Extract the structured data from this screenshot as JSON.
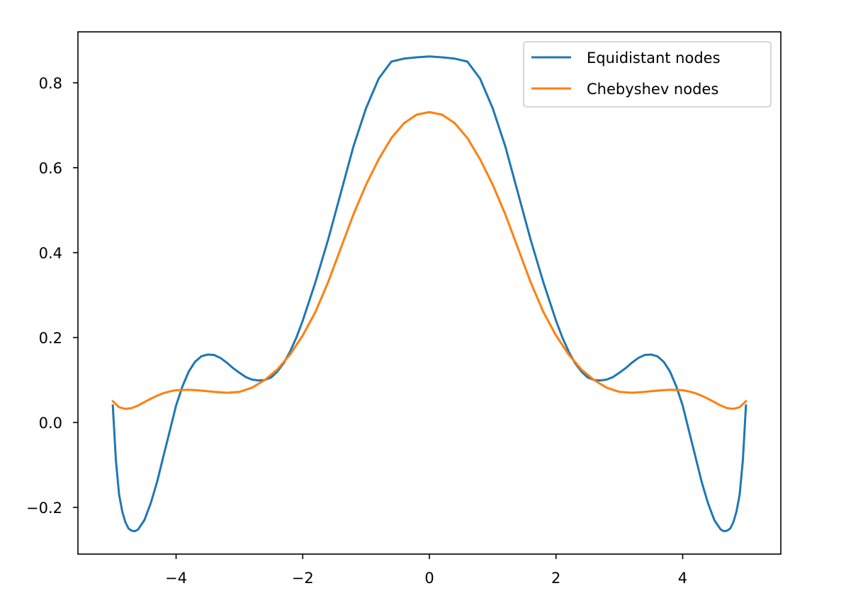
{
  "chart_data": {
    "type": "line",
    "title": "",
    "xlabel": "",
    "ylabel": "",
    "xlim": [
      -5.55,
      5.55
    ],
    "ylim": [
      -0.31,
      0.92
    ],
    "grid": false,
    "legend_position": "top-right",
    "x_ticks": [
      {
        "value": -4,
        "label": "−4"
      },
      {
        "value": -2,
        "label": "−2"
      },
      {
        "value": 0,
        "label": "0"
      },
      {
        "value": 2,
        "label": "2"
      },
      {
        "value": 4,
        "label": "4"
      }
    ],
    "y_ticks": [
      {
        "value": -0.2,
        "label": "−0.2"
      },
      {
        "value": 0.0,
        "label": "0.0"
      },
      {
        "value": 0.2,
        "label": "0.2"
      },
      {
        "value": 0.4,
        "label": "0.4"
      },
      {
        "value": 0.6,
        "label": "0.6"
      },
      {
        "value": 0.8,
        "label": "0.8"
      }
    ],
    "series": [
      {
        "name": "Equidistant nodes",
        "color": "#1f77b4",
        "x": [
          -5.0,
          -4.95,
          -4.9,
          -4.85,
          -4.8,
          -4.75,
          -4.7,
          -4.65,
          -4.6,
          -4.5,
          -4.4,
          -4.3,
          -4.2,
          -4.1,
          -4.0,
          -3.9,
          -3.8,
          -3.7,
          -3.6,
          -3.5,
          -3.4,
          -3.3,
          -3.2,
          -3.1,
          -3.0,
          -2.9,
          -2.8,
          -2.7,
          -2.6,
          -2.5,
          -2.4,
          -2.3,
          -2.2,
          -2.1,
          -2.0,
          -1.8,
          -1.6,
          -1.4,
          -1.2,
          -1.0,
          -0.8,
          -0.6,
          -0.4,
          -0.2,
          0.0,
          0.2,
          0.4,
          0.6,
          0.8,
          1.0,
          1.2,
          1.4,
          1.6,
          1.8,
          2.0,
          2.1,
          2.2,
          2.3,
          2.4,
          2.5,
          2.6,
          2.7,
          2.8,
          2.9,
          3.0,
          3.1,
          3.2,
          3.3,
          3.4,
          3.5,
          3.6,
          3.7,
          3.8,
          3.9,
          4.0,
          4.1,
          4.2,
          4.3,
          4.4,
          4.5,
          4.6,
          4.65,
          4.7,
          4.75,
          4.8,
          4.85,
          4.9,
          4.95,
          5.0
        ],
        "y": [
          0.04,
          -0.09,
          -0.17,
          -0.21,
          -0.235,
          -0.25,
          -0.255,
          -0.256,
          -0.252,
          -0.23,
          -0.19,
          -0.14,
          -0.08,
          -0.02,
          0.04,
          0.085,
          0.12,
          0.143,
          0.156,
          0.16,
          0.159,
          0.152,
          0.141,
          0.128,
          0.117,
          0.107,
          0.101,
          0.099,
          0.1,
          0.106,
          0.12,
          0.14,
          0.167,
          0.2,
          0.24,
          0.33,
          0.43,
          0.54,
          0.65,
          0.74,
          0.81,
          0.85,
          0.857,
          0.86,
          0.862,
          0.86,
          0.857,
          0.85,
          0.81,
          0.74,
          0.65,
          0.54,
          0.43,
          0.33,
          0.24,
          0.2,
          0.167,
          0.14,
          0.12,
          0.106,
          0.1,
          0.099,
          0.101,
          0.107,
          0.117,
          0.128,
          0.141,
          0.152,
          0.159,
          0.16,
          0.156,
          0.143,
          0.12,
          0.085,
          0.04,
          -0.02,
          -0.08,
          -0.14,
          -0.19,
          -0.23,
          -0.252,
          -0.256,
          -0.255,
          -0.25,
          -0.235,
          -0.21,
          -0.17,
          -0.09,
          0.04
        ]
      },
      {
        "name": "Chebyshev nodes",
        "color": "#ff7f0e",
        "x": [
          -5.0,
          -4.9,
          -4.8,
          -4.7,
          -4.6,
          -4.5,
          -4.4,
          -4.3,
          -4.2,
          -4.1,
          -4.0,
          -3.8,
          -3.6,
          -3.4,
          -3.2,
          -3.0,
          -2.8,
          -2.6,
          -2.4,
          -2.2,
          -2.0,
          -1.8,
          -1.6,
          -1.4,
          -1.2,
          -1.0,
          -0.8,
          -0.6,
          -0.4,
          -0.2,
          0.0,
          0.2,
          0.4,
          0.6,
          0.8,
          1.0,
          1.2,
          1.4,
          1.6,
          1.8,
          2.0,
          2.2,
          2.4,
          2.6,
          2.8,
          3.0,
          3.2,
          3.4,
          3.6,
          3.8,
          4.0,
          4.1,
          4.2,
          4.3,
          4.4,
          4.5,
          4.6,
          4.7,
          4.8,
          4.9,
          5.0
        ],
        "y": [
          0.05,
          0.036,
          0.032,
          0.034,
          0.04,
          0.048,
          0.056,
          0.063,
          0.069,
          0.073,
          0.076,
          0.077,
          0.075,
          0.072,
          0.07,
          0.072,
          0.082,
          0.1,
          0.125,
          0.16,
          0.205,
          0.26,
          0.33,
          0.41,
          0.49,
          0.56,
          0.62,
          0.67,
          0.705,
          0.725,
          0.731,
          0.725,
          0.705,
          0.67,
          0.62,
          0.56,
          0.49,
          0.41,
          0.33,
          0.26,
          0.205,
          0.16,
          0.125,
          0.1,
          0.082,
          0.072,
          0.07,
          0.072,
          0.075,
          0.077,
          0.076,
          0.073,
          0.069,
          0.063,
          0.056,
          0.048,
          0.04,
          0.034,
          0.032,
          0.036,
          0.05
        ]
      }
    ]
  }
}
